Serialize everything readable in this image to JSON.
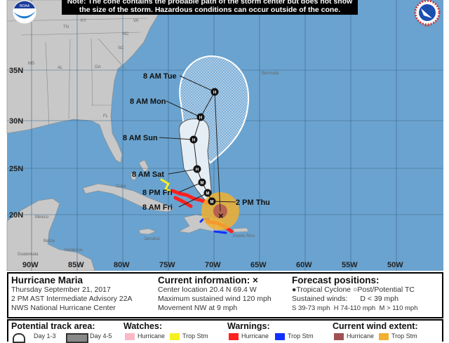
{
  "header": {
    "note_line1": "Note: The cone contains the probable path of the storm center but does not show",
    "note_line2": "the size of the storm. Hazardous conditions can occur outside of the cone.",
    "left_logo": "NOAA",
    "right_logo": "NWS"
  },
  "map": {
    "ocean_color": "#6aa3cf",
    "land_color": "#c8c8c8",
    "lon_labels": [
      "90W",
      "85W",
      "80W",
      "75W",
      "70W",
      "65W",
      "60W",
      "55W",
      "50W"
    ],
    "lat_labels": [
      "35N",
      "30N",
      "25N",
      "20N"
    ],
    "place_labels": [
      "KY",
      "VA",
      "TN",
      "NC",
      "SC",
      "MS",
      "AL",
      "GA",
      "FL",
      "Bermuda",
      "Cuba",
      "Mexico",
      "Belize",
      "Guatemala",
      "Honduras",
      "Jamaica",
      "Puerto Rico"
    ],
    "forecast_labels": [
      "8 AM Tue",
      "8 AM Mon",
      "8 AM Sun",
      "8 AM Sat",
      "8 PM Fri",
      "8 AM Fri",
      "2 PM Thu"
    ],
    "forecast_symbols": [
      "H",
      "H",
      "H",
      "H",
      "M",
      "M",
      "M"
    ],
    "current_marker": "×",
    "colors": {
      "cone_day13": "#e6eef5",
      "warning_hurricane": "#ff2020",
      "warning_tropical_storm": "#1030ff",
      "watch_tropical_storm": "#f5f020",
      "wind_hurricane": "#b05a50",
      "wind_tropical_storm": "#f0b030"
    }
  },
  "info": {
    "storm_name": "Hurricane Maria",
    "date": "Thursday September 21, 2017",
    "advisory": "2 PM AST Intermediate Advisory 22A",
    "center": "NWS National Hurricane Center",
    "current_title": "Current information: ×",
    "location": "Center location 20.4 N 69.4 W",
    "max_wind": "Maximum sustained wind 120 mph",
    "movement": "Movement NW at 9 mph",
    "forecast_title": "Forecast positions:",
    "tropical_cyclone": "Tropical Cyclone",
    "post_tc": "Post/Potential TC",
    "sustained": "Sustained winds:",
    "d": "D < 39 mph",
    "s": "S 39-73 mph",
    "hh": "H 74-110 mph",
    "m": "M > 110 mph"
  },
  "legend": {
    "track_title": "Potential track area:",
    "day13": "Day 1-3",
    "day45": "Day 4-5",
    "watches_title": "Watches:",
    "warnings_title": "Warnings:",
    "wind_title": "Current wind extent:",
    "hurricane": "Hurricane",
    "trop_stm": "Trop Stm"
  }
}
